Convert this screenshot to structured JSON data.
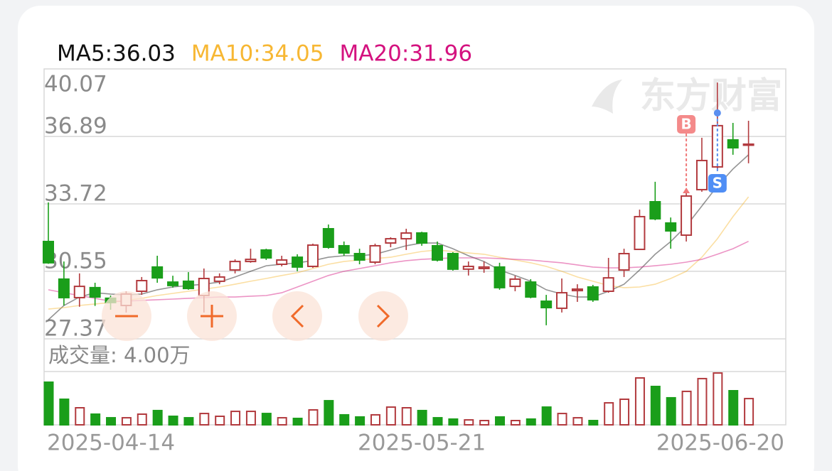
{
  "chart_data": {
    "type": "candlestick",
    "categories": [
      "2025-04-14",
      null,
      null,
      null,
      null,
      null,
      null,
      null,
      null,
      null,
      null,
      null,
      null,
      null,
      null,
      null,
      null,
      null,
      null,
      null,
      null,
      null,
      null,
      null,
      "2025-05-21",
      null,
      null,
      null,
      null,
      null,
      null,
      null,
      null,
      null,
      null,
      null,
      null,
      null,
      null,
      null,
      null,
      null,
      null,
      null,
      null,
      "2025-06-20"
    ],
    "open": [
      31.95,
      30.18,
      29.31,
      29.78,
      29.28,
      28.94,
      29.61,
      30.75,
      30.04,
      30.08,
      29.41,
      30.08,
      30.61,
      31.01,
      31.55,
      30.88,
      31.21,
      30.78,
      32.55,
      31.75,
      31.38,
      30.98,
      31.88,
      32.08,
      32.35,
      31.75,
      31.38,
      30.65,
      30.68,
      30.75,
      29.84,
      30.04,
      29.14,
      28.81,
      29.64,
      29.81,
      29.61,
      30.61,
      31.58,
      33.82,
      32.82,
      32.25,
      34.39,
      35.46,
      36.73,
      36.53
    ],
    "high": [
      33.79,
      31.01,
      30.45,
      30.01,
      29.41,
      29.61,
      30.28,
      31.28,
      30.34,
      30.51,
      30.68,
      30.45,
      31.11,
      31.61,
      31.61,
      31.28,
      31.35,
      31.85,
      32.75,
      31.95,
      31.61,
      31.85,
      32.15,
      32.55,
      32.41,
      31.95,
      31.45,
      31.01,
      31.01,
      30.95,
      30.34,
      30.18,
      29.44,
      30.21,
      29.94,
      29.91,
      31.18,
      31.61,
      33.45,
      34.76,
      33.08,
      34.29,
      36.83,
      39.43,
      37.53,
      37.63
    ],
    "low": [
      30.9,
      28.94,
      28.88,
      28.92,
      28.74,
      28.61,
      29.44,
      30.01,
      29.78,
      29.68,
      28.61,
      29.94,
      30.45,
      30.95,
      31.08,
      30.78,
      30.55,
      30.71,
      31.61,
      31.28,
      30.88,
      30.88,
      31.68,
      31.55,
      31.75,
      31.01,
      30.58,
      30.35,
      30.48,
      29.68,
      29.61,
      29.28,
      28.01,
      28.61,
      29.11,
      29.11,
      29.54,
      30.28,
      31.55,
      32.95,
      31.61,
      31.95,
      34.29,
      35.29,
      36.03,
      35.63
    ],
    "close": [
      30.95,
      29.31,
      29.84,
      29.34,
      29.08,
      29.48,
      30.11,
      30.24,
      29.88,
      29.74,
      30.21,
      30.28,
      31.01,
      31.11,
      31.18,
      31.08,
      30.75,
      31.78,
      31.68,
      31.41,
      31.08,
      31.75,
      32.08,
      32.35,
      31.88,
      31.08,
      30.65,
      30.78,
      30.75,
      29.78,
      30.18,
      29.34,
      28.84,
      29.54,
      29.71,
      29.21,
      30.24,
      31.38,
      33.12,
      33.02,
      32.45,
      34.09,
      35.76,
      37.4,
      36.36,
      36.53
    ],
    "up_color": "#b23a3e",
    "down_color": "#1a9e1a",
    "series": [
      {
        "name": "MA5:36.03",
        "color": "#111111",
        "values": [
          28.27,
          28.94,
          29.34,
          29.54,
          29.48,
          29.44,
          29.48,
          29.68,
          29.81,
          29.88,
          29.94,
          30.04,
          30.28,
          30.55,
          30.81,
          30.88,
          30.95,
          31.05,
          31.21,
          31.28,
          31.28,
          31.35,
          31.55,
          31.75,
          31.88,
          31.88,
          31.61,
          31.28,
          31.01,
          30.61,
          30.35,
          30.08,
          29.68,
          29.48,
          29.34,
          29.34,
          29.61,
          29.94,
          30.61,
          31.35,
          31.95,
          32.68,
          33.62,
          34.56,
          35.36,
          36.03
        ]
      },
      {
        "name": "MA10:34.05",
        "color": "#f7b733",
        "values": [
          28.77,
          28.84,
          28.94,
          29.01,
          29.08,
          29.18,
          29.28,
          29.41,
          29.51,
          29.61,
          29.71,
          29.81,
          29.94,
          30.08,
          30.21,
          30.35,
          30.48,
          30.68,
          30.88,
          31.01,
          31.08,
          31.15,
          31.21,
          31.35,
          31.48,
          31.55,
          31.48,
          31.41,
          31.35,
          31.21,
          31.08,
          30.95,
          30.78,
          30.55,
          30.28,
          30.08,
          29.88,
          29.78,
          29.81,
          29.94,
          30.21,
          30.55,
          31.21,
          32.08,
          33.12,
          34.05
        ]
      },
      {
        "name": "MA20:31.96",
        "color": "#d4127f",
        "values": [
          29.68,
          29.54,
          29.41,
          29.28,
          29.14,
          29.14,
          29.18,
          29.21,
          29.24,
          29.28,
          29.31,
          29.34,
          29.34,
          29.38,
          29.41,
          29.54,
          29.81,
          30.08,
          30.35,
          30.55,
          30.68,
          30.81,
          30.95,
          31.05,
          31.11,
          31.15,
          31.18,
          31.18,
          31.18,
          31.15,
          31.11,
          31.08,
          31.01,
          30.95,
          30.85,
          30.75,
          30.71,
          30.71,
          30.75,
          30.81,
          30.88,
          30.98,
          31.11,
          31.35,
          31.61,
          31.96
        ]
      }
    ],
    "ylim": [
      27.37,
      40.07
    ],
    "yticks": [
      40.07,
      36.89,
      33.72,
      30.55,
      27.37
    ],
    "grid": true,
    "annotations": [
      "B",
      "S"
    ],
    "watermark": "东方财富",
    "volume": {
      "title": "成交量: 4.00万",
      "ylim": [
        0,
        4
      ],
      "values": [
        3.2,
        1.92,
        1.28,
        0.8,
        0.53,
        0.53,
        0.8,
        1.07,
        0.64,
        0.53,
        0.85,
        0.64,
        1.01,
        1.01,
        0.85,
        0.53,
        0.48,
        1.12,
        1.81,
        0.75,
        0.59,
        0.75,
        1.33,
        1.28,
        1.07,
        0.53,
        0.43,
        0.37,
        0.32,
        0.59,
        0.32,
        0.43,
        1.33,
        0.85,
        0.53,
        0.32,
        1.65,
        1.92,
        3.52,
        2.88,
        2.03,
        2.51,
        3.47,
        3.89,
        2.56,
        1.97
      ]
    }
  }
}
